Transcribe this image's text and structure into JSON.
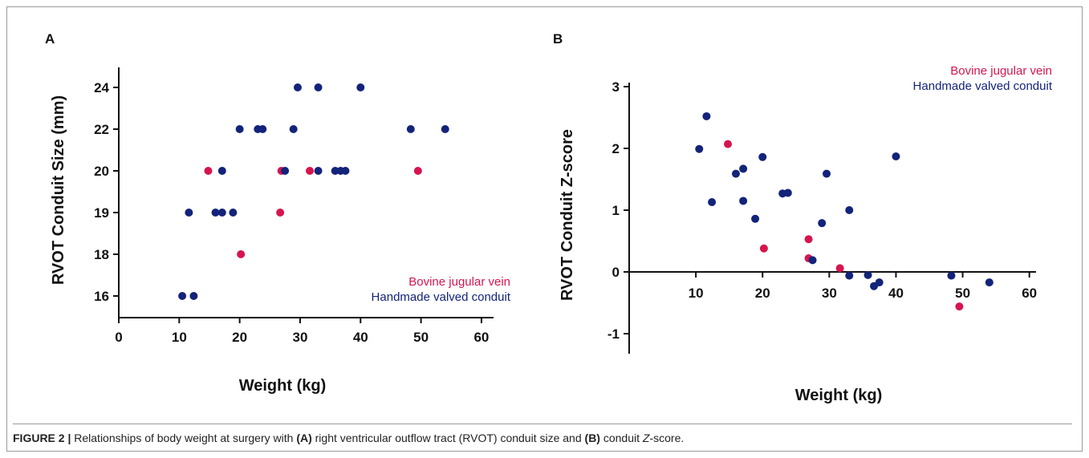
{
  "colors": {
    "bovine": "#d6154f",
    "handmade": "#13237a",
    "axis": "#111111"
  },
  "caption": {
    "prefix": "FIGURE 2 |",
    "part1": " Relationships of body weight at surgery with ",
    "a_label": "(A)",
    "part2": " right ventricular outflow tract (RVOT) conduit size and ",
    "b_label": "(B)",
    "part3": " conduit ",
    "z_letter": "Z",
    "part4": "-score."
  },
  "chart_data": [
    {
      "panel": "A",
      "type": "scatter",
      "xlabel": "Weight (kg)",
      "ylabel": "RVOT Conduit Size (mm)",
      "xlim": [
        0,
        62
      ],
      "x_ticks": [
        0,
        10,
        20,
        30,
        40,
        50,
        60
      ],
      "y_categories": [
        "16",
        "18",
        "19",
        "20",
        "22",
        "24"
      ],
      "y_range": [
        15.5,
        24.5
      ],
      "legend_placement": "bottom-right",
      "grid": false,
      "series": [
        {
          "name": "Bovine jugular vein",
          "color_key": "bovine",
          "points": [
            {
              "x": 14.8,
              "y": 20
            },
            {
              "x": 20.2,
              "y": 18
            },
            {
              "x": 26.7,
              "y": 19
            },
            {
              "x": 26.9,
              "y": 20
            },
            {
              "x": 31.6,
              "y": 20
            },
            {
              "x": 49.5,
              "y": 20
            }
          ]
        },
        {
          "name": "Handmade valved conduit",
          "color_key": "handmade",
          "points": [
            {
              "x": 10.5,
              "y": 16
            },
            {
              "x": 12.4,
              "y": 16
            },
            {
              "x": 11.6,
              "y": 19
            },
            {
              "x": 16.0,
              "y": 19
            },
            {
              "x": 17.1,
              "y": 19
            },
            {
              "x": 18.9,
              "y": 19
            },
            {
              "x": 17.1,
              "y": 20
            },
            {
              "x": 20.0,
              "y": 22
            },
            {
              "x": 23.0,
              "y": 22
            },
            {
              "x": 23.8,
              "y": 22
            },
            {
              "x": 28.9,
              "y": 22
            },
            {
              "x": 27.5,
              "y": 20
            },
            {
              "x": 33.0,
              "y": 20
            },
            {
              "x": 35.8,
              "y": 20
            },
            {
              "x": 36.7,
              "y": 20
            },
            {
              "x": 37.5,
              "y": 20
            },
            {
              "x": 29.6,
              "y": 24
            },
            {
              "x": 33.0,
              "y": 24
            },
            {
              "x": 40.0,
              "y": 24
            },
            {
              "x": 48.3,
              "y": 22
            },
            {
              "x": 54.0,
              "y": 22
            }
          ]
        }
      ]
    },
    {
      "panel": "B",
      "type": "scatter",
      "xlabel": "Weight (kg)",
      "ylabel": "RVOT Conduit Z-score",
      "xlim": [
        0,
        61
      ],
      "ylim": [
        -1.2,
        3.3
      ],
      "x_ticks": [
        10,
        20,
        30,
        40,
        50,
        60
      ],
      "y_ticks": [
        -1,
        0,
        1,
        2,
        3
      ],
      "legend_placement": "top-right",
      "grid": false,
      "series": [
        {
          "name": "Bovine jugular vein",
          "color_key": "bovine",
          "points": [
            {
              "x": 14.8,
              "y": 2.07
            },
            {
              "x": 20.2,
              "y": 0.38
            },
            {
              "x": 26.9,
              "y": 0.53
            },
            {
              "x": 26.9,
              "y": 0.22
            },
            {
              "x": 31.6,
              "y": 0.06
            },
            {
              "x": 49.5,
              "y": -0.56
            }
          ]
        },
        {
          "name": "Handmade valved conduit",
          "color_key": "handmade",
          "points": [
            {
              "x": 10.5,
              "y": 1.99
            },
            {
              "x": 11.6,
              "y": 2.52
            },
            {
              "x": 12.4,
              "y": 1.13
            },
            {
              "x": 16.0,
              "y": 1.59
            },
            {
              "x": 17.1,
              "y": 1.67
            },
            {
              "x": 17.1,
              "y": 1.15
            },
            {
              "x": 18.9,
              "y": 0.86
            },
            {
              "x": 20.0,
              "y": 1.86
            },
            {
              "x": 23.0,
              "y": 1.27
            },
            {
              "x": 23.8,
              "y": 1.28
            },
            {
              "x": 27.5,
              "y": 0.19
            },
            {
              "x": 28.9,
              "y": 0.79
            },
            {
              "x": 29.6,
              "y": 1.59
            },
            {
              "x": 33.0,
              "y": 1.0
            },
            {
              "x": 33.0,
              "y": -0.06
            },
            {
              "x": 35.8,
              "y": -0.05
            },
            {
              "x": 36.7,
              "y": -0.23
            },
            {
              "x": 37.5,
              "y": -0.17
            },
            {
              "x": 40.0,
              "y": 1.87
            },
            {
              "x": 48.3,
              "y": -0.06
            },
            {
              "x": 54.0,
              "y": -0.17
            }
          ]
        }
      ]
    }
  ]
}
